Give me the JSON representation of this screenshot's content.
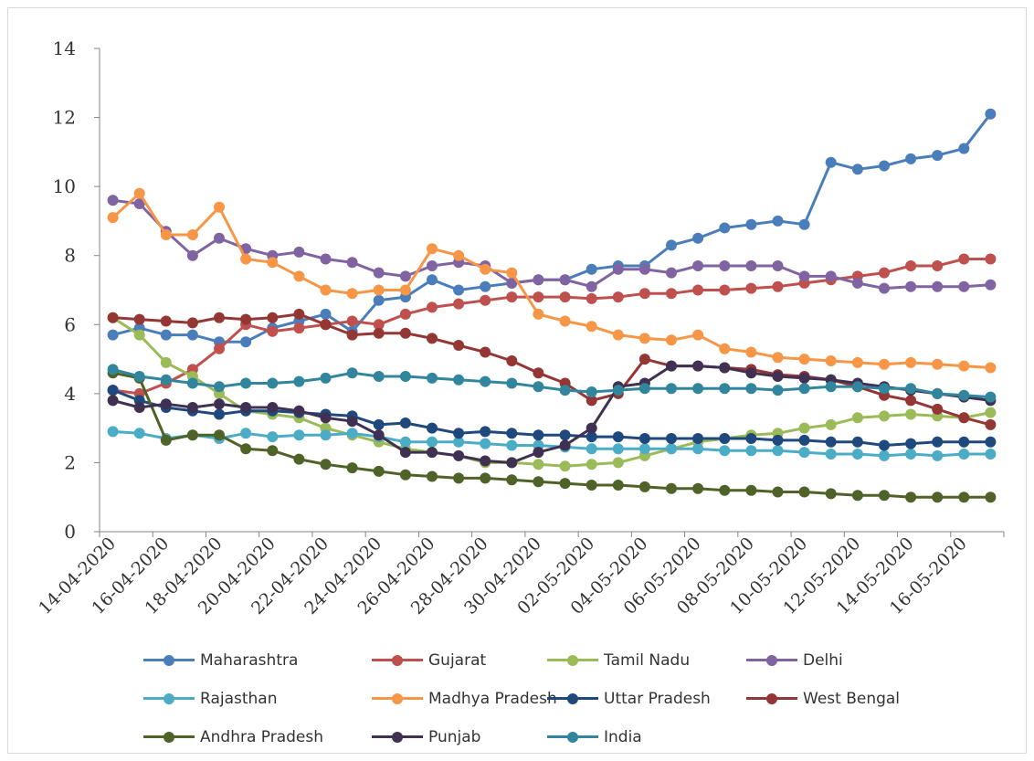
{
  "chart_data": {
    "type": "line",
    "title": "",
    "xlabel": "",
    "ylabel": "",
    "ylim": [
      0,
      14
    ],
    "yticks": [
      "0",
      "2",
      "4",
      "6",
      "8",
      "10",
      "12",
      "14"
    ],
    "grid": false,
    "legend_position": "bottom",
    "x": [
      "14-04-2020",
      "15-04-2020",
      "16-04-2020",
      "17-04-2020",
      "18-04-2020",
      "19-04-2020",
      "20-04-2020",
      "21-04-2020",
      "22-04-2020",
      "23-04-2020",
      "24-04-2020",
      "25-04-2020",
      "26-04-2020",
      "27-04-2020",
      "28-04-2020",
      "29-04-2020",
      "30-04-2020",
      "01-05-2020",
      "02-05-2020",
      "03-05-2020",
      "04-05-2020",
      "05-05-2020",
      "06-05-2020",
      "07-05-2020",
      "08-05-2020",
      "09-05-2020",
      "10-05-2020",
      "11-05-2020",
      "12-05-2020",
      "13-05-2020",
      "14-05-2020",
      "15-05-2020",
      "16-05-2020",
      "17-05-2020"
    ],
    "xticks": [
      "14-04-2020",
      "16-04-2020",
      "18-04-2020",
      "20-04-2020",
      "22-04-2020",
      "24-04-2020",
      "26-04-2020",
      "28-04-2020",
      "30-04-2020",
      "02-05-2020",
      "04-05-2020",
      "06-05-2020",
      "08-05-2020",
      "10-05-2020",
      "12-05-2020",
      "14-05-2020",
      "16-05-2020"
    ],
    "series": [
      {
        "name": "Maharashtra",
        "color": "#4a7ebb",
        "values": [
          5.7,
          5.9,
          5.7,
          5.7,
          5.5,
          5.5,
          5.9,
          6.1,
          6.3,
          5.8,
          6.7,
          6.8,
          7.3,
          7.0,
          7.1,
          7.2,
          7.3,
          7.3,
          7.6,
          7.7,
          7.7,
          8.3,
          8.5,
          8.8,
          8.9,
          9.0,
          8.9,
          10.7,
          10.5,
          10.6,
          10.8,
          10.9,
          11.1,
          12.1
        ]
      },
      {
        "name": "Gujarat",
        "color": "#c0504d",
        "values": [
          4.1,
          4.0,
          4.3,
          4.7,
          5.3,
          6.0,
          5.8,
          5.9,
          6.0,
          6.1,
          6.0,
          6.3,
          6.5,
          6.6,
          6.7,
          6.8,
          6.8,
          6.8,
          6.75,
          6.8,
          6.9,
          6.9,
          7.0,
          7.0,
          7.05,
          7.1,
          7.2,
          7.3,
          7.4,
          7.5,
          7.7,
          7.7,
          7.9,
          7.9
        ]
      },
      {
        "name": "Tamil Nadu",
        "color": "#9bbb59",
        "values": [
          6.2,
          5.7,
          4.9,
          4.5,
          4.0,
          3.5,
          3.4,
          3.3,
          3.0,
          2.8,
          2.6,
          2.4,
          2.3,
          2.2,
          2.0,
          2.0,
          1.95,
          1.9,
          1.95,
          2.0,
          2.2,
          2.4,
          2.6,
          2.7,
          2.8,
          2.85,
          3.0,
          3.1,
          3.3,
          3.35,
          3.4,
          3.35,
          3.3,
          3.45
        ]
      },
      {
        "name": "Delhi",
        "color": "#8064a2",
        "values": [
          9.6,
          9.5,
          8.7,
          8.0,
          8.5,
          8.2,
          8.0,
          8.1,
          7.9,
          7.8,
          7.5,
          7.4,
          7.7,
          7.8,
          7.7,
          7.2,
          7.3,
          7.3,
          7.1,
          7.6,
          7.6,
          7.5,
          7.7,
          7.7,
          7.7,
          7.7,
          7.4,
          7.4,
          7.2,
          7.05,
          7.1,
          7.1,
          7.1,
          7.15
        ]
      },
      {
        "name": "Rajasthan",
        "color": "#4bacc6",
        "values": [
          2.9,
          2.85,
          2.7,
          2.8,
          2.7,
          2.85,
          2.75,
          2.8,
          2.8,
          2.85,
          2.75,
          2.6,
          2.6,
          2.6,
          2.55,
          2.5,
          2.5,
          2.45,
          2.4,
          2.4,
          2.4,
          2.4,
          2.4,
          2.35,
          2.35,
          2.35,
          2.3,
          2.25,
          2.25,
          2.2,
          2.25,
          2.2,
          2.25,
          2.25
        ]
      },
      {
        "name": "Madhya Pradesh",
        "color": "#f79646",
        "values": [
          9.1,
          9.8,
          8.6,
          8.6,
          9.4,
          7.9,
          7.8,
          7.4,
          7.0,
          6.9,
          7.0,
          7.0,
          8.2,
          8.0,
          7.6,
          7.5,
          6.3,
          6.1,
          5.95,
          5.7,
          5.6,
          5.55,
          5.7,
          5.3,
          5.2,
          5.05,
          5.0,
          4.95,
          4.9,
          4.85,
          4.9,
          4.85,
          4.8,
          4.75
        ]
      },
      {
        "name": "Uttar Pradesh",
        "color": "#1f497d",
        "values": [
          4.1,
          3.8,
          3.6,
          3.5,
          3.4,
          3.5,
          3.5,
          3.45,
          3.4,
          3.35,
          3.1,
          3.15,
          3.0,
          2.85,
          2.9,
          2.85,
          2.8,
          2.8,
          2.75,
          2.75,
          2.7,
          2.7,
          2.7,
          2.7,
          2.7,
          2.65,
          2.65,
          2.6,
          2.6,
          2.5,
          2.55,
          2.6,
          2.6,
          2.6
        ]
      },
      {
        "name": "West Bengal",
        "color": "#943634",
        "values": [
          6.2,
          6.15,
          6.1,
          6.05,
          6.2,
          6.15,
          6.2,
          6.3,
          6.0,
          5.7,
          5.75,
          5.75,
          5.6,
          5.4,
          5.2,
          4.95,
          4.6,
          4.3,
          3.8,
          4.0,
          5.0,
          4.8,
          4.8,
          4.75,
          4.7,
          4.55,
          4.5,
          4.4,
          4.2,
          3.95,
          3.8,
          3.55,
          3.3,
          3.1
        ]
      },
      {
        "name": "Andhra Pradesh",
        "color": "#4f6228",
        "values": [
          4.6,
          4.45,
          2.65,
          2.8,
          2.8,
          2.4,
          2.35,
          2.1,
          1.95,
          1.85,
          1.75,
          1.65,
          1.6,
          1.55,
          1.55,
          1.5,
          1.45,
          1.4,
          1.35,
          1.35,
          1.3,
          1.25,
          1.25,
          1.2,
          1.2,
          1.15,
          1.15,
          1.1,
          1.05,
          1.05,
          1.0,
          1.0,
          1.0,
          1.0
        ]
      },
      {
        "name": "Punjab",
        "color": "#403152",
        "values": [
          3.8,
          3.6,
          3.7,
          3.6,
          3.7,
          3.6,
          3.6,
          3.5,
          3.3,
          3.2,
          2.8,
          2.3,
          2.3,
          2.2,
          2.05,
          2.0,
          2.3,
          2.5,
          3.0,
          4.2,
          4.3,
          4.8,
          4.8,
          4.75,
          4.6,
          4.5,
          4.45,
          4.4,
          4.3,
          4.2,
          4.1,
          4.0,
          3.9,
          3.8
        ]
      },
      {
        "name": "India",
        "color": "#31859c",
        "values": [
          4.7,
          4.5,
          4.4,
          4.3,
          4.2,
          4.3,
          4.3,
          4.35,
          4.45,
          4.6,
          4.5,
          4.5,
          4.45,
          4.4,
          4.35,
          4.3,
          4.2,
          4.1,
          4.05,
          4.1,
          4.15,
          4.15,
          4.15,
          4.15,
          4.15,
          4.1,
          4.15,
          4.2,
          4.2,
          4.15,
          4.15,
          4.0,
          3.95,
          3.9
        ]
      }
    ]
  }
}
